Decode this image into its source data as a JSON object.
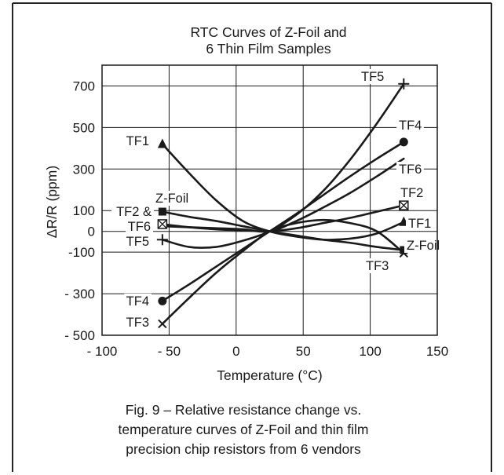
{
  "chart_data": {
    "type": "line",
    "title": [
      "RTC Curves of Z-Foil and",
      "6 Thin Film Samples"
    ],
    "xlabel": "Temperature (°C)",
    "ylabel": "ΔR/R (ppm)",
    "xlim": [
      -100,
      150
    ],
    "ylim": [
      -500,
      800
    ],
    "xticks": [
      -100,
      -50,
      0,
      50,
      100,
      150
    ],
    "xtick_labels": [
      "- 100",
      "- 50",
      "0",
      "50",
      "100",
      "150"
    ],
    "yticks": [
      700,
      500,
      300,
      100,
      0,
      -100,
      -300,
      -500
    ],
    "ytick_labels": [
      "700",
      "500",
      "300",
      "100",
      "0",
      "-100",
      "- 300",
      "- 500"
    ],
    "grid": true,
    "series": [
      {
        "name": "TF5",
        "marker": "plus",
        "x": [
          -55,
          -35,
          -15,
          5,
          25,
          45,
          65,
          85,
          105,
          125
        ],
        "y": [
          -40,
          -75,
          -75,
          -45,
          0,
          80,
          195,
          345,
          520,
          710
        ]
      },
      {
        "name": "TF4",
        "marker": "circle",
        "x": [
          -55,
          -35,
          -15,
          5,
          25,
          45,
          65,
          85,
          105,
          125
        ],
        "y": [
          -335,
          -255,
          -170,
          -85,
          0,
          85,
          175,
          265,
          350,
          430
        ]
      },
      {
        "name": "TF6",
        "marker": "none",
        "x": [
          -55,
          -35,
          -15,
          5,
          25,
          45,
          65,
          85,
          105,
          125
        ],
        "y": [
          25,
          20,
          15,
          10,
          0,
          50,
          115,
          185,
          265,
          350
        ]
      },
      {
        "name": "TF2",
        "marker": "boxed-x",
        "x": [
          -55,
          -35,
          -15,
          5,
          25,
          45,
          65,
          85,
          105,
          125
        ],
        "y": [
          35,
          20,
          10,
          5,
          0,
          15,
          40,
          65,
          95,
          125
        ]
      },
      {
        "name": "TF1",
        "marker": "triangle",
        "x": [
          -55,
          -35,
          -15,
          5,
          25,
          45,
          65,
          85,
          105,
          125
        ],
        "y": [
          420,
          280,
          150,
          50,
          0,
          -25,
          -40,
          -35,
          -10,
          45
        ]
      },
      {
        "name": "Z-Foil",
        "marker": "square",
        "x": [
          -55,
          -35,
          -15,
          5,
          25,
          45,
          65,
          85,
          105,
          125
        ],
        "y": [
          95,
          70,
          50,
          25,
          0,
          -20,
          -40,
          -55,
          -75,
          -90
        ]
      },
      {
        "name": "TF3",
        "marker": "x",
        "x": [
          -55,
          -35,
          -15,
          5,
          25,
          45,
          65,
          85,
          105,
          125
        ],
        "y": [
          -445,
          -320,
          -200,
          -95,
          0,
          40,
          55,
          40,
          0,
          -105
        ]
      }
    ],
    "annotations": [
      {
        "text": "TF5",
        "at": [
          125,
          710
        ]
      },
      {
        "text": "TF4",
        "at": [
          125,
          430
        ]
      },
      {
        "text": "TF6",
        "at": [
          125,
          350
        ]
      },
      {
        "text": "TF2",
        "at": [
          125,
          125
        ]
      },
      {
        "text": "TF1",
        "at": [
          125,
          45
        ]
      },
      {
        "text": "Z-Foil",
        "at": [
          125,
          -90
        ]
      },
      {
        "text": "TF3",
        "at": [
          125,
          -105
        ]
      },
      {
        "text": "TF1",
        "at": [
          -55,
          420
        ]
      },
      {
        "text": "Z-Foil",
        "at": [
          -55,
          95
        ]
      },
      {
        "text": "TF2 &",
        "at": [
          -55,
          35
        ]
      },
      {
        "text": "TF6",
        "at": [
          -55,
          25
        ]
      },
      {
        "text": "TF5",
        "at": [
          -55,
          -40
        ]
      },
      {
        "text": "TF4",
        "at": [
          -55,
          -335
        ]
      },
      {
        "text": "TF3",
        "at": [
          -55,
          -445
        ]
      }
    ],
    "caption": [
      "Fig. 9 – Relative resistance change vs.",
      "temperature curves of Z-Foil and thin film",
      "precision chip resistors from 6 vendors"
    ]
  }
}
